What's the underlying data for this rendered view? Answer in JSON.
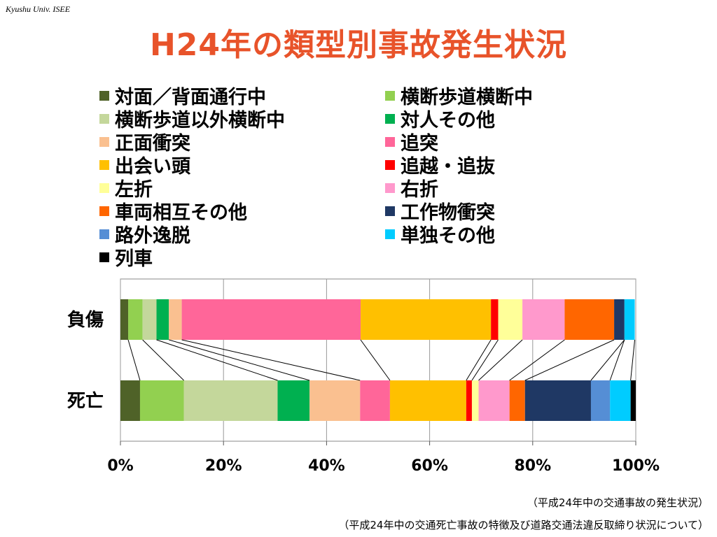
{
  "header": {
    "org": "Kyushu Univ. ISEE"
  },
  "title": "H24年の類型別事故発生状況",
  "chart_data": {
    "type": "bar",
    "orientation": "horizontal",
    "stacked": true,
    "percent": true,
    "categories": [
      "負傷",
      "死亡"
    ],
    "series": [
      {
        "name": "対面／背面通行中",
        "color": "#4f6228",
        "values": [
          1.5,
          3.8
        ]
      },
      {
        "name": "横断歩道横断中",
        "color": "#92d050",
        "values": [
          2.8,
          8.5
        ]
      },
      {
        "name": "横断歩道以外横断中",
        "color": "#c4d79b",
        "values": [
          2.7,
          18.2
        ]
      },
      {
        "name": "対人その他",
        "color": "#00b050",
        "values": [
          2.4,
          6.2
        ]
      },
      {
        "name": "正面衝突",
        "color": "#fac090",
        "values": [
          2.5,
          9.8
        ]
      },
      {
        "name": "追突",
        "color": "#ff6699",
        "values": [
          34.7,
          5.8
        ]
      },
      {
        "name": "出会い頭",
        "color": "#ffc000",
        "values": [
          25.3,
          14.8
        ]
      },
      {
        "name": "追越・追抜",
        "color": "#ff0000",
        "values": [
          1.4,
          1.1
        ]
      },
      {
        "name": "左折",
        "color": "#ffff99",
        "values": [
          4.7,
          1.3
        ]
      },
      {
        "name": "右折",
        "color": "#ff99cc",
        "values": [
          8.2,
          6.0
        ]
      },
      {
        "name": "車両相互その他",
        "color": "#ff6600",
        "values": [
          9.6,
          3.0
        ]
      },
      {
        "name": "工作物衝突",
        "color": "#1f3864",
        "values": [
          2.0,
          12.8
        ]
      },
      {
        "name": "路外逸脱",
        "color": "#558ed5",
        "values": [
          0.0,
          3.7
        ]
      },
      {
        "name": "単独その他",
        "color": "#00ccff",
        "values": [
          2.0,
          4.0
        ]
      },
      {
        "name": "列車",
        "color": "#000000",
        "values": [
          0.0,
          1.0
        ]
      }
    ],
    "xlim": [
      0,
      100
    ],
    "xticks": [
      "0%",
      "20%",
      "40%",
      "60%",
      "80%",
      "100%"
    ],
    "grid": true,
    "legend_position": "top",
    "connector_lines": true
  },
  "source": {
    "line1": "（平成24年中の交通事故の発生状況）",
    "line2": "（平成24年中の交通死亡事故の特徴及び道路交通法違反取締り状況について）"
  }
}
